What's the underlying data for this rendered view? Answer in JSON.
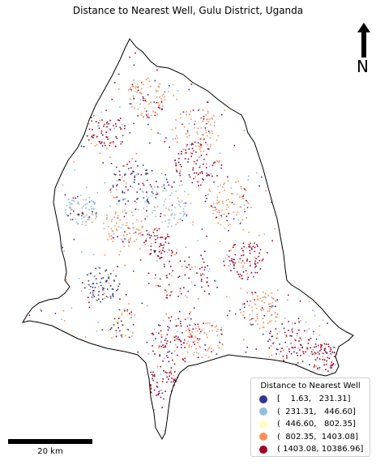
{
  "title": "Distance to Nearest Well, Gulu District, Uganda",
  "north_arrow": {
    "label": "N",
    "icon": "north-arrow-icon"
  },
  "scale_bar": {
    "label": "20 km"
  },
  "legend": {
    "title": "Distance to Nearest Well",
    "classes": [
      {
        "label": "[    1.63,   231.31]",
        "color": "#313695"
      },
      {
        "label": "(  231.31,   446.60]",
        "color": "#91bfdb"
      },
      {
        "label": "(  446.60,   802.35]",
        "color": "#ffffbf"
      },
      {
        "label": "(  802.35,  1403.08]",
        "color": "#fc8d59"
      },
      {
        "label": "( 1403.08, 10386.96]",
        "color": "#a50026"
      }
    ]
  },
  "colors": {
    "boundary": "#000000",
    "background": "#ffffff"
  }
}
